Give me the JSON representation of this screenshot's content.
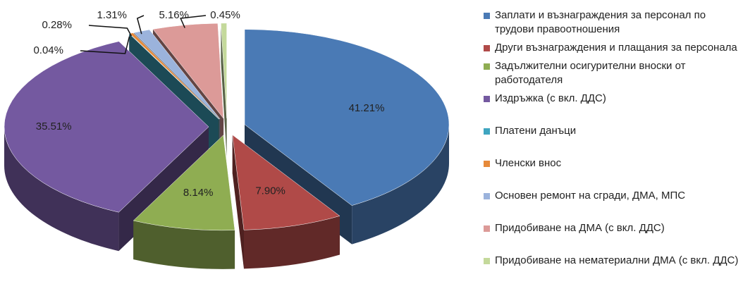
{
  "chart_data": {
    "type": "pie",
    "categories": [
      "Заплати и възнаграждения за персонал по трудови правоотношения",
      "Други възнаграждения и плащания за персонала",
      "Задължителни осигурителни вноски от работодателя",
      "Издръжка (с вкл. ДДС)",
      "Платени данъци",
      "Членски внос",
      "Основен ремонт на сгради, ДМА, МПС",
      "Придобиване на ДМА (с вкл. ДДС)",
      "Придобиване на нематериални ДМА (с вкл. ДДС)"
    ],
    "values": [
      41.21,
      7.9,
      8.14,
      35.51,
      0.04,
      0.28,
      1.31,
      5.16,
      0.45
    ],
    "value_labels": [
      "41.21%",
      "7.90%",
      "8.14%",
      "35.51%",
      "0.04%",
      "0.28%",
      "1.31%",
      "5.16%",
      "0.45%"
    ],
    "colors": [
      "#4a7ab5",
      "#b04a48",
      "#8fad52",
      "#7459a0",
      "#3fa5c0",
      "#e68a3a",
      "#9bb3dc",
      "#dc9a98",
      "#c4d99b"
    ],
    "legend": "right"
  }
}
